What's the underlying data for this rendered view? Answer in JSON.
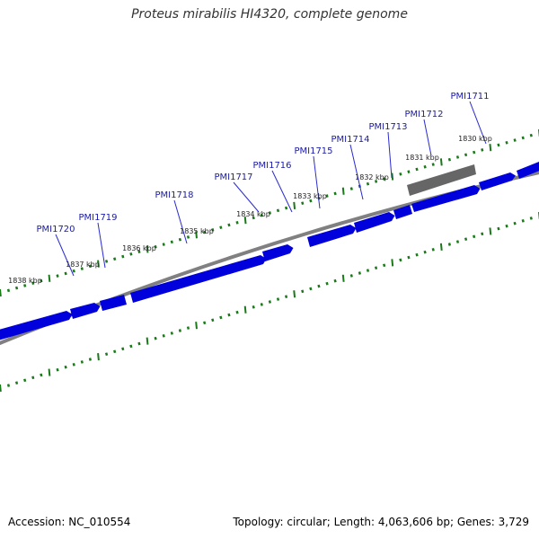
{
  "title": "Proteus mirabilis HI4320, complete genome",
  "footer": {
    "accession": "Accession: NC_010554",
    "summary": "Topology: circular; Length: 4,063,606 bp; Genes: 3,729"
  },
  "genes": [
    {
      "name": "PMI1711",
      "bar": "s1"
    },
    {
      "name": "PMI1712",
      "bar": "s2"
    },
    {
      "name": "PMI1713",
      "bar": "s3"
    },
    {
      "name": "PMI1714",
      "bar": "s4"
    },
    {
      "name": "PMI1715",
      "bar": "s5"
    },
    {
      "name": "PMI1716",
      "bar": "s6"
    },
    {
      "name": "PMI1717",
      "bar": "s7"
    },
    {
      "name": "PMI1718",
      "bar": "s8"
    },
    {
      "name": "PMI1719",
      "bar": "s9"
    },
    {
      "name": "PMI1720",
      "bar": "s10"
    }
  ],
  "kbp_labels": [
    "1830 kbp",
    "1831 kbp",
    "1832 kbp",
    "1833 kbp",
    "1834 kbp",
    "1835 kbp",
    "1836 kbp",
    "1837 kbp",
    "1838 kbp"
  ],
  "colors": {
    "gene": "#0000dd",
    "gene_label": "#1a1aaa",
    "backbone": "#808080",
    "tick": "#1a7a1a",
    "rna": "#666666",
    "leader": "#2a2ad0"
  }
}
